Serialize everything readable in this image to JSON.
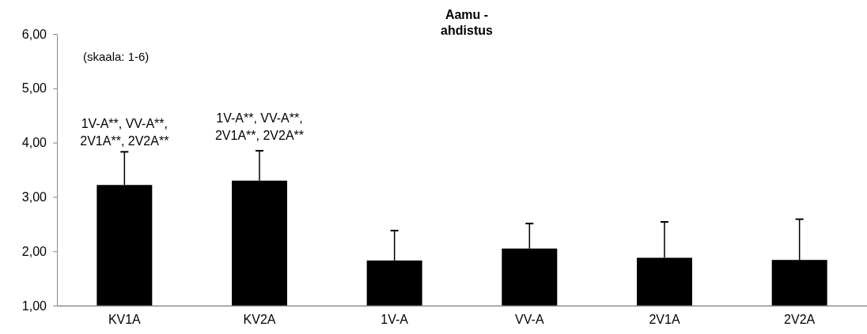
{
  "chart_data": {
    "type": "bar",
    "title": "Aamu - ahdistus",
    "categories": [
      "KV1A",
      "KV2A",
      "1V-A",
      "VV-A",
      "2V1A",
      "2V2A"
    ],
    "values": [
      3.22,
      3.3,
      1.83,
      2.05,
      1.88,
      1.84
    ],
    "errors": [
      [
        3.22,
        3.83
      ],
      [
        3.3,
        3.85
      ],
      [
        1.83,
        2.38
      ],
      [
        2.05,
        2.51
      ],
      [
        1.88,
        2.54
      ],
      [
        1.84,
        2.59
      ]
    ],
    "color": "#000000",
    "ylim": [
      1,
      6
    ],
    "yticks": [
      {
        "value": 1,
        "label": "1,00"
      },
      {
        "value": 2,
        "label": "2,00"
      },
      {
        "value": 3,
        "label": "3,00"
      },
      {
        "value": 4,
        "label": "4,00"
      },
      {
        "value": 5,
        "label": "5,00"
      },
      {
        "value": 6,
        "label": "6,00"
      }
    ],
    "grid": false,
    "annotations": [
      "(skaala: 1-6)",
      "1V-A**, VV-A**, 2V1A**, 2V2A**",
      "1V-A**, VV-A**, 2V1A**, 2V2A**"
    ]
  }
}
